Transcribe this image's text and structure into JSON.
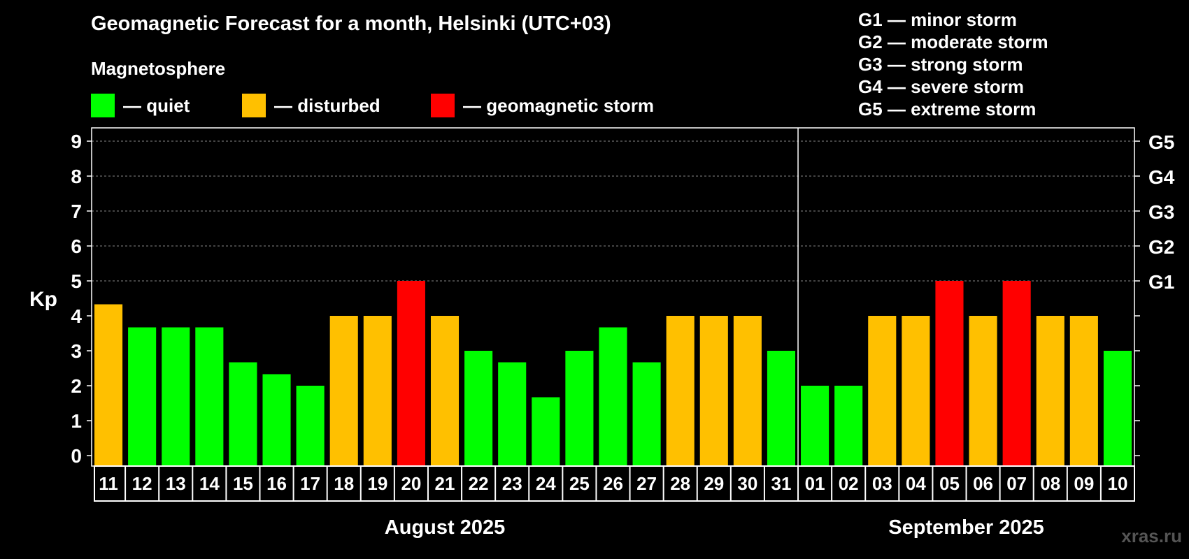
{
  "title": "Geomagnetic Forecast for a month, Helsinki (UTC+03)",
  "magnetosphere_label": "Magnetosphere",
  "legend": [
    {
      "label": "— quiet",
      "color": "#00ff00"
    },
    {
      "label": "— disturbed",
      "color": "#ffc000"
    },
    {
      "label": "— geomagnetic storm",
      "color": "#ff0000"
    }
  ],
  "g_scale": [
    "G1 — minor storm",
    "G2 — moderate storm",
    "G3 — strong storm",
    "G4 — severe storm",
    "G5 — extreme storm"
  ],
  "watermark": "xras.ru",
  "chart_data": {
    "type": "bar",
    "ylabel": "Kp",
    "ylim": [
      0,
      9
    ],
    "y_ticks": [
      0,
      1,
      2,
      3,
      4,
      5,
      6,
      7,
      8,
      9
    ],
    "right_ticks": [
      {
        "value": 5,
        "label": "G1"
      },
      {
        "value": 6,
        "label": "G2"
      },
      {
        "value": 7,
        "label": "G3"
      },
      {
        "value": 8,
        "label": "G4"
      },
      {
        "value": 9,
        "label": "G5"
      }
    ],
    "categories": [
      "11",
      "12",
      "13",
      "14",
      "15",
      "16",
      "17",
      "18",
      "19",
      "20",
      "21",
      "22",
      "23",
      "24",
      "25",
      "26",
      "27",
      "28",
      "29",
      "30",
      "31",
      "01",
      "02",
      "03",
      "04",
      "05",
      "06",
      "07",
      "08",
      "09",
      "10"
    ],
    "values": [
      4.33,
      3.67,
      3.67,
      3.67,
      2.67,
      2.33,
      2.0,
      4.0,
      4.0,
      5.0,
      4.0,
      3.0,
      2.67,
      1.67,
      3.0,
      3.67,
      2.67,
      4.0,
      4.0,
      4.0,
      3.0,
      2.0,
      2.0,
      4.0,
      4.0,
      5.0,
      4.0,
      5.0,
      4.0,
      4.0,
      3.0
    ],
    "status": [
      "disturbed",
      "quiet",
      "quiet",
      "quiet",
      "quiet",
      "quiet",
      "quiet",
      "disturbed",
      "disturbed",
      "storm",
      "disturbed",
      "quiet",
      "quiet",
      "quiet",
      "quiet",
      "quiet",
      "quiet",
      "disturbed",
      "disturbed",
      "disturbed",
      "quiet",
      "quiet",
      "quiet",
      "disturbed",
      "disturbed",
      "storm",
      "disturbed",
      "storm",
      "disturbed",
      "disturbed",
      "quiet"
    ],
    "status_colors": {
      "quiet": "#00ff00",
      "disturbed": "#ffc000",
      "storm": "#ff0000"
    },
    "months": [
      {
        "label": "August 2025",
        "start_index": 0,
        "end_index": 20
      },
      {
        "label": "September 2025",
        "start_index": 21,
        "end_index": 30
      }
    ]
  }
}
